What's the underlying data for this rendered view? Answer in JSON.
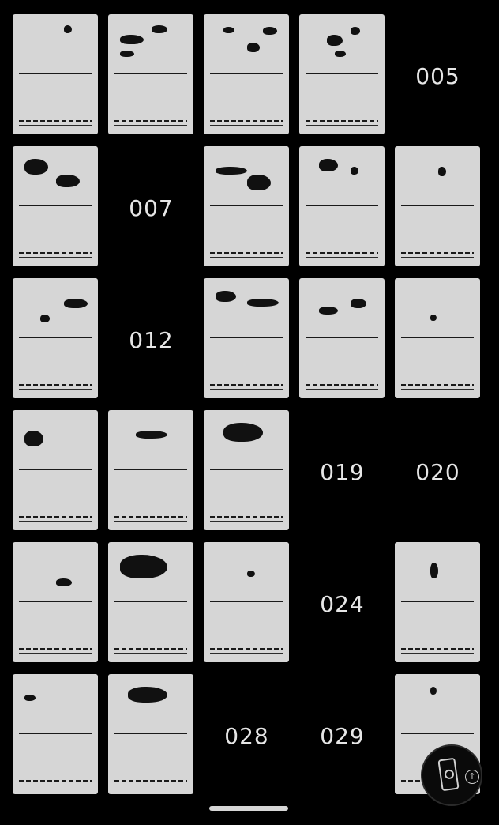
{
  "grid": {
    "slots": [
      {
        "id": "001",
        "filled": true
      },
      {
        "id": "002",
        "filled": true
      },
      {
        "id": "003",
        "filled": true
      },
      {
        "id": "004",
        "filled": true
      },
      {
        "id": "005",
        "filled": false,
        "label": "005"
      },
      {
        "id": "006",
        "filled": true
      },
      {
        "id": "007",
        "filled": false,
        "label": "007"
      },
      {
        "id": "008",
        "filled": true
      },
      {
        "id": "009",
        "filled": true
      },
      {
        "id": "010",
        "filled": true
      },
      {
        "id": "011",
        "filled": true
      },
      {
        "id": "012",
        "filled": false,
        "label": "012"
      },
      {
        "id": "013",
        "filled": true
      },
      {
        "id": "014",
        "filled": true
      },
      {
        "id": "015",
        "filled": true
      },
      {
        "id": "016",
        "filled": true
      },
      {
        "id": "017",
        "filled": true
      },
      {
        "id": "018",
        "filled": true
      },
      {
        "id": "019",
        "filled": false,
        "label": "019"
      },
      {
        "id": "020",
        "filled": false,
        "label": "020"
      },
      {
        "id": "021",
        "filled": true
      },
      {
        "id": "022",
        "filled": true
      },
      {
        "id": "023",
        "filled": true
      },
      {
        "id": "024",
        "filled": false,
        "label": "024"
      },
      {
        "id": "025",
        "filled": true
      },
      {
        "id": "026",
        "filled": true
      },
      {
        "id": "027",
        "filled": true
      },
      {
        "id": "028",
        "filled": false,
        "label": "028"
      },
      {
        "id": "029",
        "filled": false,
        "label": "029"
      },
      {
        "id": "030",
        "filled": true
      }
    ]
  },
  "fab": {
    "icon": "phone-pokeball-icon",
    "badge_icon": "arrow-up-icon"
  },
  "colors": {
    "card": "#d6d6d6",
    "background": "#000000",
    "slot_text": "#e6e6e6"
  }
}
